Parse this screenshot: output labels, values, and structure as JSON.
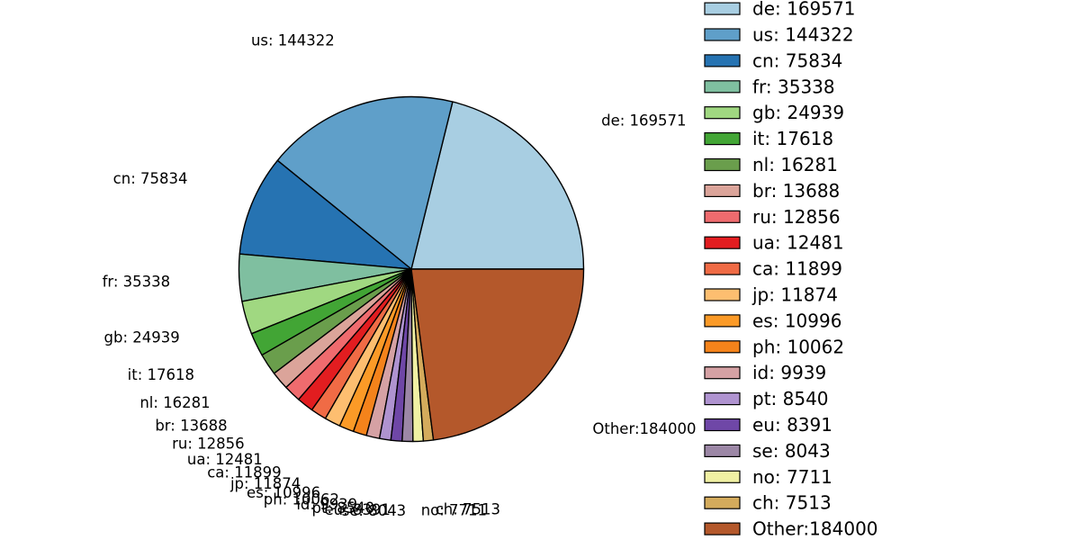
{
  "chart_data": {
    "type": "pie",
    "title": "",
    "categories": [
      "de",
      "us",
      "cn",
      "fr",
      "gb",
      "it",
      "nl",
      "br",
      "ru",
      "ua",
      "ca",
      "jp",
      "es",
      "ph",
      "id",
      "pt",
      "eu",
      "se",
      "no",
      "ch",
      "Other"
    ],
    "values": [
      169571,
      144322,
      75834,
      35338,
      24939,
      17618,
      16281,
      13688,
      12856,
      12481,
      11899,
      11874,
      10996,
      10062,
      9939,
      8540,
      8391,
      8043,
      7711,
      7513,
      184000
    ],
    "labels": [
      "de: 169571",
      "us: 144322",
      "cn: 75834",
      "fr: 35338",
      "gb: 24939",
      "it: 17618",
      "nl: 16281",
      "br: 13688",
      "ru: 12856",
      "ua: 12481",
      "ca: 11899",
      "jp: 11874",
      "es: 10996",
      "ph: 10062",
      "id: 9939",
      "pt: 8540",
      "eu: 8391",
      "se: 8043",
      "no: 7711",
      "ch: 7513",
      "Other:184000"
    ],
    "colors": [
      "#a8cee2",
      "#5f9fc9",
      "#2673b2",
      "#7fbfa0",
      "#a0d881",
      "#42a535",
      "#6a9e4c",
      "#dba49a",
      "#ef6b6e",
      "#e21d20",
      "#f06b45",
      "#fdbe70",
      "#fb9a27",
      "#f4831b",
      "#d5a1a4",
      "#af93d0",
      "#6f47a7",
      "#9c87a6",
      "#f0f0a3",
      "#d4ab5c",
      "#b4582b"
    ],
    "legend": {
      "position": "right",
      "entries": [
        "de: 169571",
        "us: 144322",
        "cn: 75834",
        "fr: 35338",
        "gb: 24939",
        "it: 17618",
        "nl: 16281",
        "br: 13688",
        "ru: 12856",
        "ua: 12481",
        "ca: 11899",
        "jp: 11874",
        "es: 10996",
        "ph: 10062",
        "id: 9939",
        "pt: 8540",
        "eu: 8391",
        "se: 8043",
        "no: 7711",
        "ch: 7513",
        "Other:184000"
      ]
    },
    "layout": {
      "start_angle_deg": 0,
      "direction": "counterclockwise",
      "label_distance": 1.4,
      "grid": false,
      "legend_position": "right"
    },
    "style": {
      "edge_color": "#000000",
      "text_color": "#000000",
      "background": "#ffffff"
    }
  }
}
